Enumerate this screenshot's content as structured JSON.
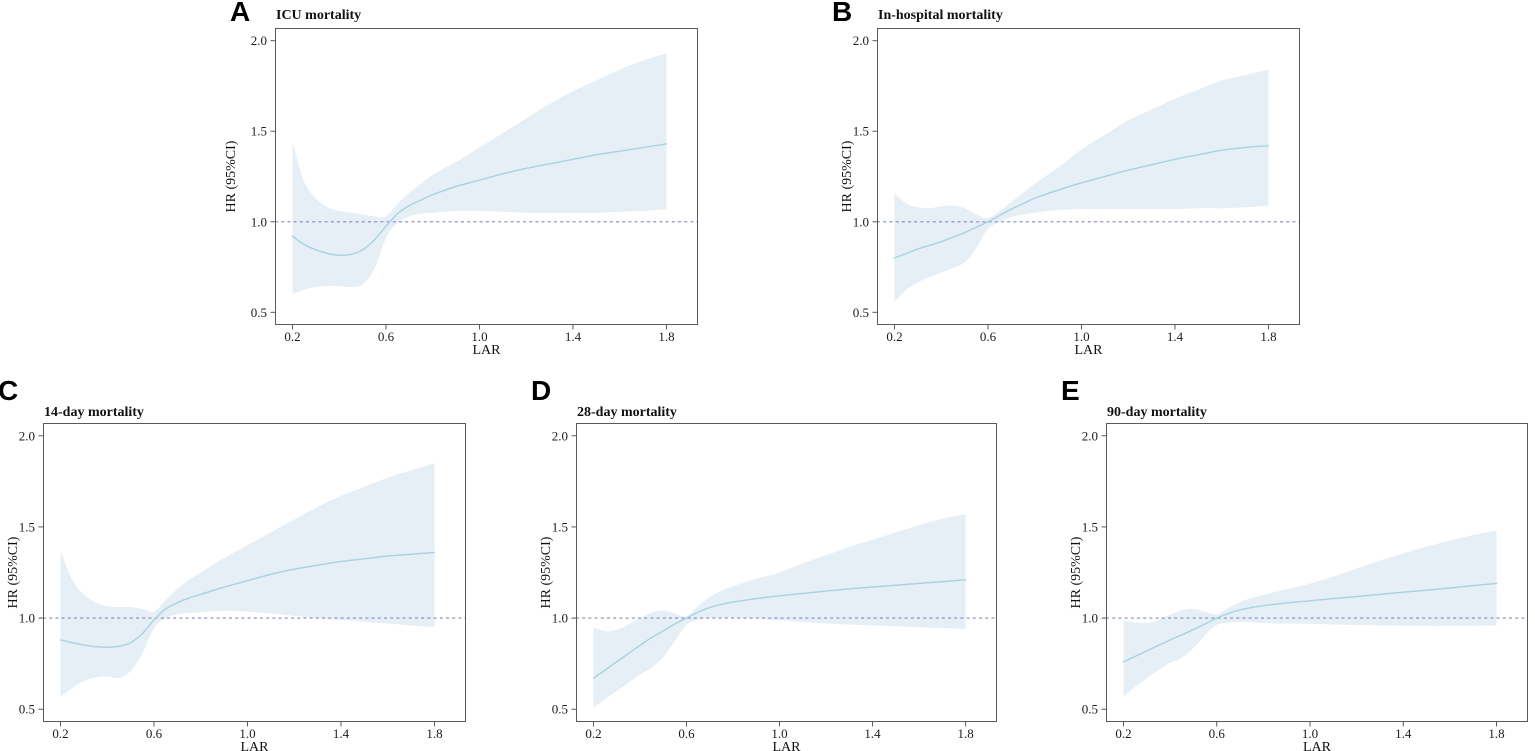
{
  "style": {
    "background": "#ffffff",
    "band_color": "#e5eff5",
    "curve_color": "#a8d2e0",
    "ref_line_color": "#8287c9",
    "axis_color": "#595959",
    "text_color": "#1c1c1c"
  },
  "chart_data": [
    {
      "panel_letter": "A",
      "title": "ICU mortality",
      "type": "line",
      "xlabel": "LAR",
      "ylabel": "HR (95%CI)",
      "x_ticks": [
        "0.2",
        "0.6",
        "1.0",
        "1.4",
        "1.8"
      ],
      "y_ticks": [
        "0.5",
        "1.0",
        "1.5",
        "2.0"
      ],
      "xlim": [
        0.125,
        1.935
      ],
      "ylim": [
        0.43,
        2.07
      ],
      "ref_line_y": 1.0,
      "legend": "none",
      "x": [
        0.2,
        0.25,
        0.3,
        0.35,
        0.4,
        0.45,
        0.5,
        0.55,
        0.6,
        0.65,
        0.7,
        0.75,
        0.8,
        0.9,
        1.0,
        1.1,
        1.2,
        1.3,
        1.4,
        1.5,
        1.6,
        1.7,
        1.8
      ],
      "series": [
        {
          "name": "HR",
          "values": [
            0.92,
            0.875,
            0.845,
            0.825,
            0.815,
            0.82,
            0.845,
            0.9,
            0.975,
            1.045,
            1.09,
            1.12,
            1.15,
            1.195,
            1.23,
            1.265,
            1.295,
            1.32,
            1.345,
            1.37,
            1.39,
            1.41,
            1.43
          ]
        },
        {
          "name": "95% CI upper",
          "values": [
            1.44,
            1.22,
            1.13,
            1.08,
            1.06,
            1.05,
            1.04,
            1.03,
            1.03,
            1.1,
            1.16,
            1.21,
            1.26,
            1.33,
            1.41,
            1.49,
            1.57,
            1.65,
            1.72,
            1.78,
            1.84,
            1.89,
            1.93
          ]
        },
        {
          "name": "95% CI lower",
          "values": [
            0.6,
            0.625,
            0.64,
            0.645,
            0.645,
            0.64,
            0.655,
            0.74,
            0.91,
            0.995,
            1.03,
            1.045,
            1.05,
            1.06,
            1.06,
            1.055,
            1.05,
            1.05,
            1.05,
            1.05,
            1.055,
            1.06,
            1.07
          ]
        }
      ]
    },
    {
      "panel_letter": "B",
      "title": "In-hospital mortality",
      "type": "line",
      "xlabel": "LAR",
      "ylabel": "HR (95%CI)",
      "x_ticks": [
        "0.2",
        "0.6",
        "1.0",
        "1.4",
        "1.8"
      ],
      "y_ticks": [
        "0.5",
        "1.0",
        "1.5",
        "2.0"
      ],
      "xlim": [
        0.125,
        1.935
      ],
      "ylim": [
        0.43,
        2.07
      ],
      "ref_line_y": 1.0,
      "legend": "none",
      "x": [
        0.2,
        0.25,
        0.3,
        0.35,
        0.4,
        0.45,
        0.5,
        0.55,
        0.6,
        0.65,
        0.7,
        0.75,
        0.8,
        0.9,
        1.0,
        1.1,
        1.2,
        1.3,
        1.4,
        1.5,
        1.6,
        1.7,
        1.8
      ],
      "series": [
        {
          "name": "HR",
          "values": [
            0.8,
            0.825,
            0.85,
            0.87,
            0.89,
            0.915,
            0.94,
            0.97,
            1.0,
            1.035,
            1.07,
            1.1,
            1.13,
            1.175,
            1.215,
            1.25,
            1.285,
            1.315,
            1.345,
            1.37,
            1.395,
            1.41,
            1.42
          ]
        },
        {
          "name": "95% CI upper",
          "values": [
            1.16,
            1.1,
            1.08,
            1.075,
            1.085,
            1.09,
            1.075,
            1.04,
            1.02,
            1.06,
            1.11,
            1.16,
            1.21,
            1.3,
            1.4,
            1.48,
            1.56,
            1.62,
            1.68,
            1.73,
            1.78,
            1.81,
            1.84
          ]
        },
        {
          "name": "95% CI lower",
          "values": [
            0.555,
            0.625,
            0.665,
            0.695,
            0.72,
            0.745,
            0.775,
            0.855,
            0.96,
            1.0,
            1.025,
            1.04,
            1.05,
            1.065,
            1.07,
            1.07,
            1.07,
            1.07,
            1.07,
            1.075,
            1.075,
            1.08,
            1.09
          ]
        }
      ]
    },
    {
      "panel_letter": "C",
      "title": "14-day mortality",
      "type": "line",
      "xlabel": "LAR",
      "ylabel": "HR (95%CI)",
      "x_ticks": [
        "0.2",
        "0.6",
        "1.0",
        "1.4",
        "1.8"
      ],
      "y_ticks": [
        "0.5",
        "1.0",
        "1.5",
        "2.0"
      ],
      "xlim": [
        0.125,
        1.935
      ],
      "ylim": [
        0.43,
        2.07
      ],
      "ref_line_y": 1.0,
      "legend": "none",
      "x": [
        0.2,
        0.25,
        0.3,
        0.35,
        0.4,
        0.45,
        0.5,
        0.55,
        0.6,
        0.65,
        0.7,
        0.75,
        0.8,
        0.9,
        1.0,
        1.1,
        1.2,
        1.3,
        1.4,
        1.5,
        1.6,
        1.7,
        1.8
      ],
      "series": [
        {
          "name": "HR",
          "values": [
            0.88,
            0.865,
            0.852,
            0.843,
            0.84,
            0.845,
            0.865,
            0.915,
            0.99,
            1.05,
            1.085,
            1.11,
            1.13,
            1.17,
            1.205,
            1.24,
            1.268,
            1.29,
            1.31,
            1.325,
            1.34,
            1.35,
            1.36
          ]
        },
        {
          "name": "95% CI upper",
          "values": [
            1.37,
            1.21,
            1.13,
            1.085,
            1.065,
            1.06,
            1.06,
            1.05,
            1.035,
            1.1,
            1.16,
            1.21,
            1.25,
            1.33,
            1.4,
            1.47,
            1.54,
            1.61,
            1.67,
            1.72,
            1.77,
            1.81,
            1.85
          ]
        },
        {
          "name": "95% CI lower",
          "values": [
            0.57,
            0.615,
            0.655,
            0.675,
            0.68,
            0.672,
            0.71,
            0.805,
            0.945,
            1.0,
            1.02,
            1.028,
            1.032,
            1.04,
            1.035,
            1.025,
            1.012,
            1.0,
            0.99,
            0.98,
            0.97,
            0.96,
            0.95
          ]
        }
      ]
    },
    {
      "panel_letter": "D",
      "title": "28-day mortality",
      "type": "line",
      "xlabel": "LAR",
      "ylabel": "HR (95%CI)",
      "x_ticks": [
        "0.2",
        "0.6",
        "1.0",
        "1.4",
        "1.8"
      ],
      "y_ticks": [
        "0.5",
        "1.0",
        "1.5",
        "2.0"
      ],
      "xlim": [
        0.125,
        1.935
      ],
      "ylim": [
        0.43,
        2.07
      ],
      "ref_line_y": 1.0,
      "legend": "none",
      "x": [
        0.2,
        0.25,
        0.3,
        0.35,
        0.4,
        0.45,
        0.5,
        0.55,
        0.6,
        0.65,
        0.7,
        0.75,
        0.8,
        0.9,
        1.0,
        1.1,
        1.2,
        1.3,
        1.4,
        1.5,
        1.6,
        1.7,
        1.8
      ],
      "series": [
        {
          "name": "HR",
          "values": [
            0.67,
            0.715,
            0.76,
            0.805,
            0.85,
            0.893,
            0.93,
            0.967,
            1.0,
            1.032,
            1.058,
            1.075,
            1.088,
            1.107,
            1.122,
            1.135,
            1.148,
            1.16,
            1.17,
            1.18,
            1.19,
            1.2,
            1.21
          ]
        },
        {
          "name": "95% CI upper",
          "values": [
            0.95,
            0.928,
            0.935,
            0.965,
            1.0,
            1.03,
            1.042,
            1.025,
            1.01,
            1.065,
            1.115,
            1.15,
            1.175,
            1.215,
            1.25,
            1.3,
            1.345,
            1.39,
            1.43,
            1.47,
            1.51,
            1.545,
            1.57
          ]
        },
        {
          "name": "95% CI lower",
          "values": [
            0.51,
            0.555,
            0.6,
            0.645,
            0.69,
            0.728,
            0.785,
            0.875,
            0.963,
            0.99,
            1.0,
            1.003,
            1.003,
            0.998,
            0.988,
            0.978,
            0.97,
            0.965,
            0.96,
            0.955,
            0.95,
            0.945,
            0.94
          ]
        }
      ]
    },
    {
      "panel_letter": "E",
      "title": "90-day mortality",
      "type": "line",
      "xlabel": "LAR",
      "ylabel": "HR (95%CI)",
      "x_ticks": [
        "0.2",
        "0.6",
        "1.0",
        "1.4",
        "1.8"
      ],
      "y_ticks": [
        "0.5",
        "1.0",
        "1.5",
        "2.0"
      ],
      "xlim": [
        0.125,
        1.935
      ],
      "ylim": [
        0.43,
        2.07
      ],
      "ref_line_y": 1.0,
      "legend": "none",
      "x": [
        0.2,
        0.25,
        0.3,
        0.35,
        0.4,
        0.45,
        0.5,
        0.55,
        0.6,
        0.65,
        0.7,
        0.75,
        0.8,
        0.9,
        1.0,
        1.1,
        1.2,
        1.3,
        1.4,
        1.5,
        1.6,
        1.7,
        1.8
      ],
      "series": [
        {
          "name": "HR",
          "values": [
            0.76,
            0.79,
            0.82,
            0.85,
            0.88,
            0.908,
            0.937,
            0.968,
            1.0,
            1.025,
            1.045,
            1.058,
            1.068,
            1.083,
            1.095,
            1.107,
            1.118,
            1.13,
            1.142,
            1.153,
            1.165,
            1.178,
            1.19
          ]
        },
        {
          "name": "95% CI upper",
          "values": [
            0.99,
            0.975,
            0.972,
            0.988,
            1.018,
            1.042,
            1.05,
            1.035,
            1.02,
            1.055,
            1.088,
            1.11,
            1.127,
            1.158,
            1.19,
            1.228,
            1.272,
            1.315,
            1.355,
            1.392,
            1.425,
            1.455,
            1.48
          ]
        },
        {
          "name": "95% CI lower",
          "values": [
            0.57,
            0.622,
            0.67,
            0.715,
            0.755,
            0.782,
            0.835,
            0.905,
            0.962,
            0.975,
            0.98,
            0.977,
            0.973,
            0.97,
            0.968,
            0.965,
            0.962,
            0.96,
            0.958,
            0.957,
            0.957,
            0.958,
            0.96
          ]
        }
      ]
    }
  ]
}
